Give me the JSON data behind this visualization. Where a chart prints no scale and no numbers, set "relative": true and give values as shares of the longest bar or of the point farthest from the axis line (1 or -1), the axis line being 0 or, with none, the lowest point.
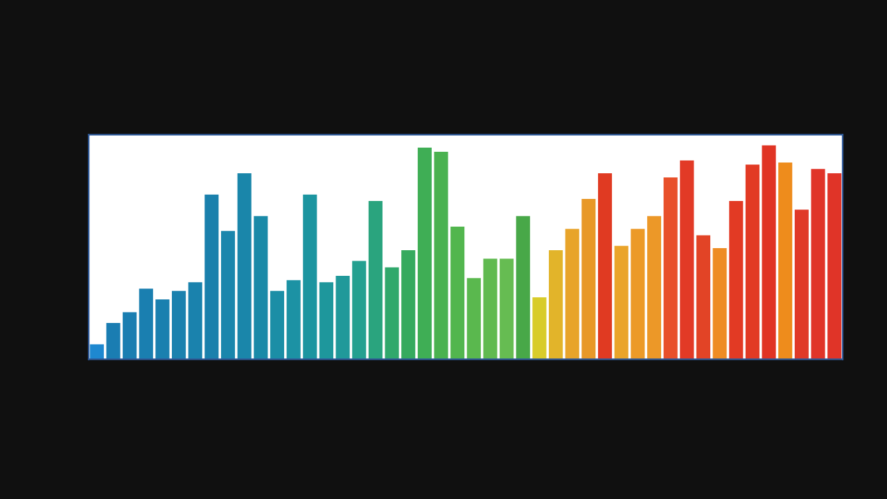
{
  "chart_data": {
    "type": "bar",
    "relative": true,
    "categories": [
      null,
      null,
      null,
      null,
      null,
      null,
      null,
      null,
      null,
      null,
      null,
      null,
      null,
      null,
      null,
      null,
      null,
      null,
      null,
      null,
      null,
      null,
      null,
      null,
      null,
      null,
      null,
      null,
      null,
      null,
      null,
      null,
      null,
      null,
      null,
      null,
      null,
      null,
      null,
      null,
      null,
      null,
      null,
      null,
      null,
      null
    ],
    "values": [
      0.07,
      0.17,
      0.22,
      0.33,
      0.28,
      0.32,
      0.36,
      0.77,
      0.6,
      0.87,
      0.67,
      0.32,
      0.37,
      0.77,
      0.36,
      0.39,
      0.46,
      0.74,
      0.43,
      0.51,
      0.99,
      0.97,
      0.62,
      0.38,
      0.47,
      0.47,
      0.67,
      0.29,
      0.51,
      0.61,
      0.75,
      0.87,
      0.53,
      0.61,
      0.67,
      0.85,
      0.93,
      0.58,
      0.52,
      0.74,
      0.91,
      1,
      0.92,
      0.7,
      0.89,
      0.87
    ],
    "colors": [
      "#1e88d0",
      "#1a7db2",
      "#1a7eb1",
      "#1a7fb0",
      "#1a80af",
      "#1a81ae",
      "#1a82ad",
      "#1a80ac",
      "#1a86ac",
      "#1a86aa",
      "#1a8aa8",
      "#1b8ea6",
      "#1c92a4",
      "#1c95a0",
      "#1e979c",
      "#20999a",
      "#24a090",
      "#2aa47e",
      "#30a86c",
      "#36aa5e",
      "#3fae55",
      "#4ab250",
      "#52b64e",
      "#5ab84e",
      "#60ba50",
      "#66bc52",
      "#48a848",
      "#d8cc2a",
      "#e2b42a",
      "#e8a42a",
      "#e89828",
      "#e03a22",
      "#eaa42a",
      "#ec9a28",
      "#ec9828",
      "#e8502a",
      "#e23a26",
      "#e24426",
      "#ee8c24",
      "#e23a24",
      "#e23a24",
      "#e03424",
      "#ee8c1c",
      "#e03a28",
      "#e03428",
      "#e03428"
    ]
  }
}
